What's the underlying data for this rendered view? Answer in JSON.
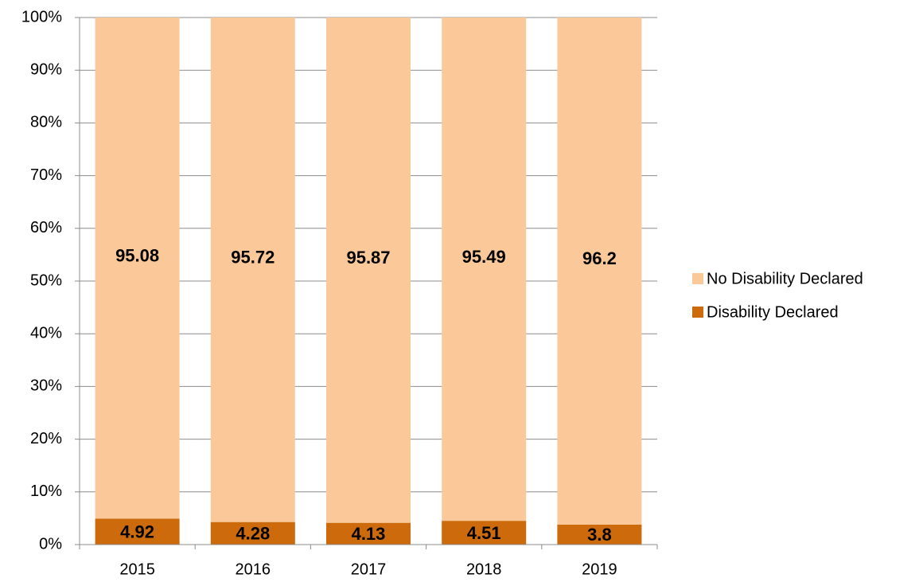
{
  "chart_data": {
    "type": "stacked_bar",
    "categories": [
      "2015",
      "2016",
      "2017",
      "2018",
      "2019"
    ],
    "series": [
      {
        "name": "Disability Declared",
        "color": "#cc6a0c",
        "values": [
          4.92,
          4.28,
          4.13,
          4.51,
          3.8
        ]
      },
      {
        "name": "No Disability Declared",
        "color": "#fbc999",
        "values": [
          95.08,
          95.72,
          95.87,
          95.49,
          96.2
        ]
      }
    ],
    "ylim": [
      0,
      100
    ],
    "yticks": [
      {
        "value": 0,
        "label": "0%"
      },
      {
        "value": 10,
        "label": "10%"
      },
      {
        "value": 20,
        "label": "20%"
      },
      {
        "value": 30,
        "label": "30%"
      },
      {
        "value": 40,
        "label": "40%"
      },
      {
        "value": 50,
        "label": "50%"
      },
      {
        "value": 60,
        "label": "60%"
      },
      {
        "value": 70,
        "label": "70%"
      },
      {
        "value": 80,
        "label": "80%"
      },
      {
        "value": 90,
        "label": "90%"
      },
      {
        "value": 100,
        "label": "100%"
      }
    ],
    "grid": true,
    "legend": "right"
  }
}
